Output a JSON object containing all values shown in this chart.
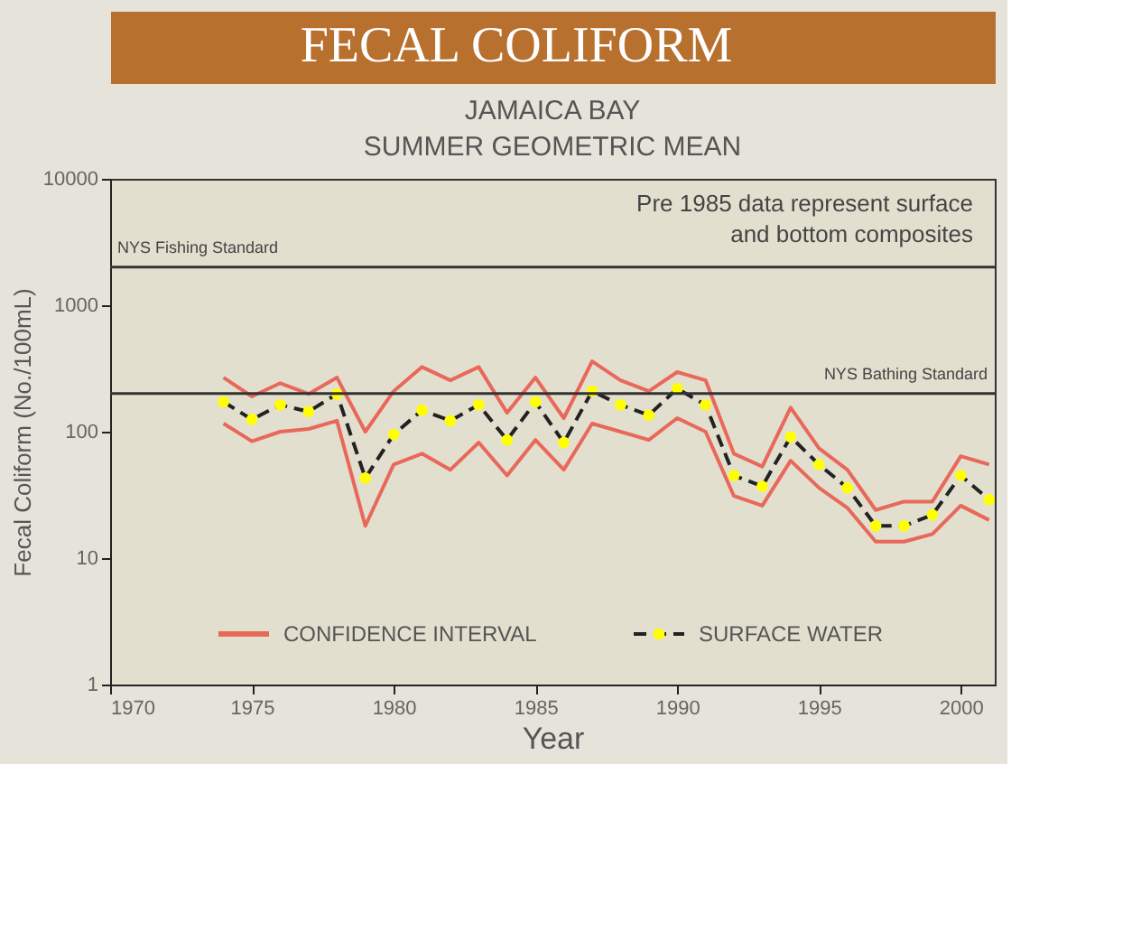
{
  "chart_data": {
    "type": "line",
    "title": "FECAL COLIFORM",
    "subtitle": "JAMAICA BAY\nSUMMER GEOMETRIC MEAN",
    "xlabel": "Year",
    "ylabel": "Fecal Coliform (No./100mL)",
    "x": [
      1974,
      1975,
      1976,
      1977,
      1978,
      1979,
      1980,
      1981,
      1982,
      1983,
      1984,
      1985,
      1986,
      1987,
      1988,
      1989,
      1990,
      1991,
      1992,
      1993,
      1994,
      1995,
      1996,
      1997,
      1998,
      1999,
      2000,
      2001
    ],
    "series": [
      {
        "name": "CONFIDENCE INTERVAL",
        "color": "#e8685a",
        "line_style": "solid",
        "marker": "none",
        "values": [
          268,
          190,
          242,
          199,
          268,
          100,
          209,
          325,
          255,
          325,
          141,
          268,
          128,
          360,
          255,
          209,
          296,
          255,
          67,
          53,
          155,
          74,
          50,
          24,
          28,
          28,
          64,
          55
        ]
      },
      {
        "color": "#e8685a",
        "line_style": "solid",
        "marker": "none",
        "values": [
          116,
          84,
          100,
          105,
          122,
          18,
          55,
          67,
          50,
          82,
          45,
          86,
          50,
          116,
          100,
          86,
          128,
          100,
          31,
          26,
          59,
          36,
          25,
          13.5,
          13.5,
          15.5,
          26,
          20
        ]
      },
      {
        "name": "SURFACE WATER",
        "color": "#ffff00",
        "line_style": "dashed",
        "marker": "circle",
        "values": [
          172,
          125,
          163,
          144,
          199,
          43,
          95,
          148,
          122,
          163,
          86,
          172,
          82,
          209,
          163,
          135,
          219,
          163,
          45,
          37,
          91,
          55,
          36,
          18,
          18,
          22,
          45,
          29
        ]
      }
    ],
    "log": "y",
    "xlim": [
      1970,
      2001.2
    ],
    "xticks": [
      1970,
      1975,
      1980,
      1985,
      1990,
      1995,
      2000
    ],
    "ylim": [
      1,
      10000
    ],
    "yticks": [
      1,
      10,
      100,
      1000,
      10000
    ],
    "grid": false,
    "legend": "bottom",
    "ref_lines": [
      {
        "axis": "y",
        "value": 2000,
        "label": "NYS Fishing Standard",
        "color": "#333333"
      },
      {
        "axis": "y",
        "value": 200,
        "label": "NYS Bathing Standard",
        "color": "#333333"
      }
    ],
    "annotations": [
      "Pre 1985 data represent surface\nand bottom composites"
    ]
  }
}
